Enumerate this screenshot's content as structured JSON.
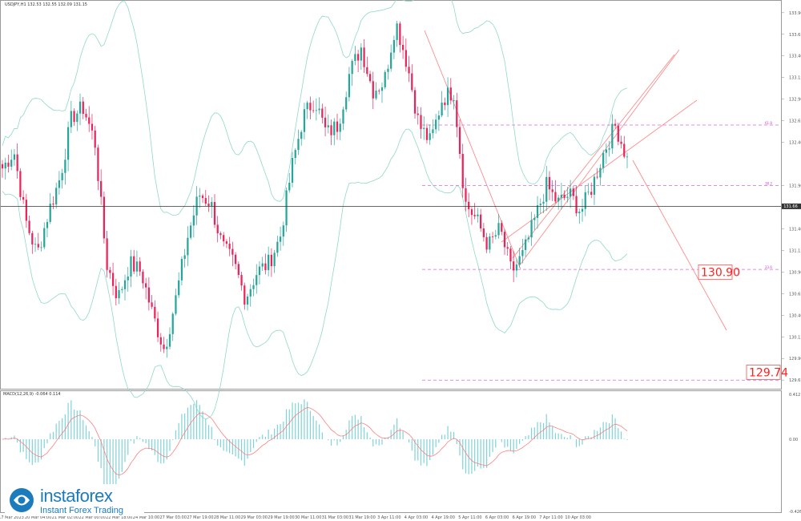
{
  "header": {
    "symbol_info": "USDJPY,H1  132.53 132.55 132.09 131.15"
  },
  "macd_header": "MACD(12,26,9) -0.064 0.114",
  "price_axis": {
    "labels": [
      "133.90",
      "133.65",
      "133.40",
      "133.15",
      "132.90",
      "132.65",
      "132.40",
      "131.90",
      "131.65",
      "131.40",
      "131.15",
      "130.90",
      "130.65",
      "130.40",
      "130.15",
      "129.90",
      "129.65"
    ],
    "current_price": "131.66",
    "current_value": 131.66
  },
  "macd_axis": {
    "labels": [
      "0.412",
      "0.00",
      "-0.426"
    ]
  },
  "time_axis": {
    "labels": [
      "17 Mar 2023",
      "20 Mar 04:00",
      "21 Mar 02:00",
      "22 Mar 00:00",
      "22 Mar 18:00",
      "24 Mar 10:00",
      "27 Mar 03:00",
      "27 Mar 19:00",
      "28 Mar 11:00",
      "29 Mar 03:00",
      "29 Mar 19:00",
      "30 Mar 11:00",
      "31 Mar 03:00",
      "31 Mar 19:00",
      "3 Apr 11:00",
      "4 Apr 03:00",
      "4 Apr 19:00",
      "5 Apr 11:00",
      "6 Apr 03:00",
      "6 Apr 19:00",
      "7 Apr 11:00",
      "10 Apr 03:00"
    ]
  },
  "fib_levels": [
    {
      "value": 132.6,
      "label": "61.8"
    },
    {
      "value": 131.9,
      "label": "38.2"
    },
    {
      "value": 130.93,
      "label": "23.6"
    },
    {
      "value": 129.65,
      "label": "0.0"
    }
  ],
  "targets": [
    {
      "value": 130.9,
      "label": "130.90"
    },
    {
      "value": 129.74,
      "label": "129.74"
    }
  ],
  "colors": {
    "up": "#26a69a",
    "down": "#e8245a",
    "bands": "#8fd8c8",
    "fib": "#dd66dd",
    "trend": "#ff8080",
    "macd_hist": "#7fd3d8",
    "macd_signal": "#ff7070"
  },
  "logo": {
    "name": "instaforex",
    "tagline": "Instant Forex Trading"
  },
  "chart_data": {
    "type": "candlestick",
    "symbol": "USDJPY",
    "timeframe": "H1",
    "series": [
      {
        "name": "USDJPY",
        "anchor_prices": [
          132.1,
          132.3,
          131.5,
          131.1,
          131.6,
          132.0,
          132.7,
          132.8,
          132.4,
          131.0,
          130.6,
          131.0,
          130.9,
          130.4,
          130.0,
          130.6,
          131.3,
          131.8,
          131.7,
          131.2,
          131.0,
          130.6,
          130.9,
          131.0,
          131.3,
          132.1,
          132.7,
          132.9,
          132.5,
          132.6,
          133.2,
          133.5,
          133.0,
          133.1,
          133.8,
          133.3,
          132.6,
          132.4,
          132.9,
          133.0,
          131.7,
          131.5,
          131.2,
          131.4,
          130.9,
          131.1,
          131.5,
          131.9,
          131.7,
          131.8,
          131.6,
          131.9,
          132.3,
          132.6,
          132.2
        ]
      },
      {
        "name": "MACD",
        "type": "histogram"
      },
      {
        "name": "Signal",
        "type": "line"
      }
    ],
    "ylim": [
      129.55,
      134.0
    ],
    "macd_ylim": [
      -0.426,
      0.412
    ]
  }
}
